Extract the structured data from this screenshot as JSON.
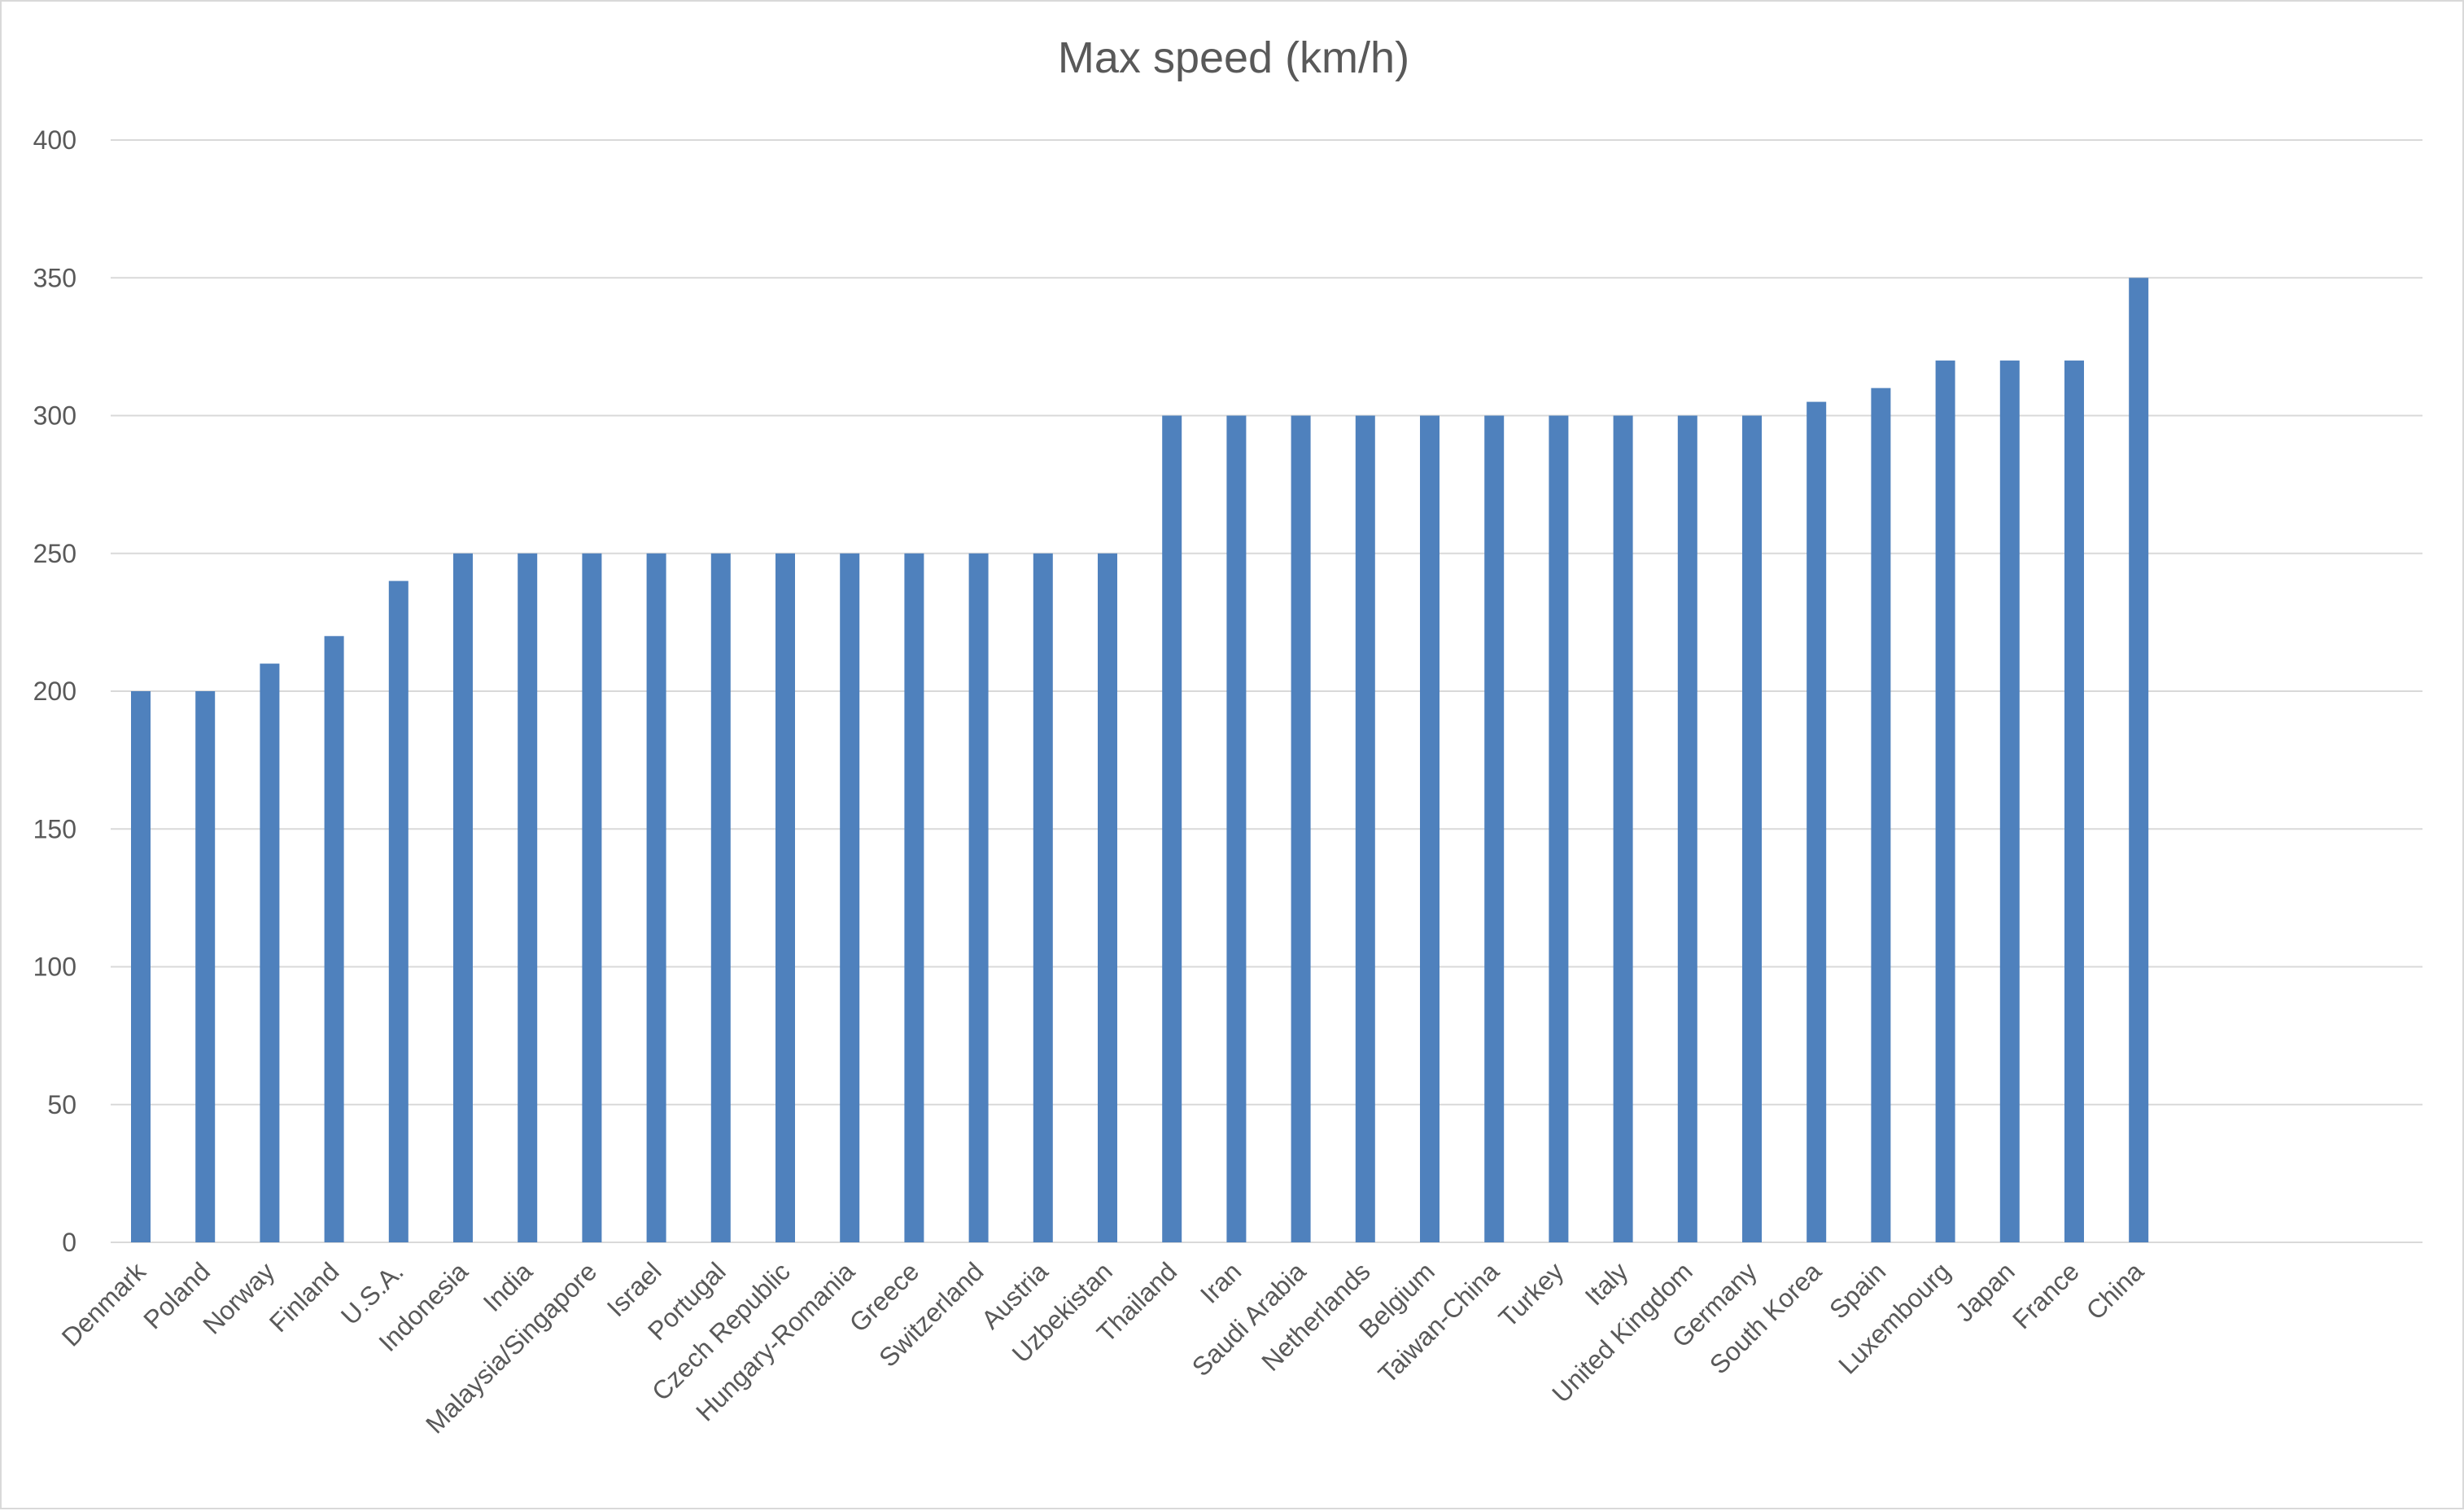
{
  "chart_data": {
    "type": "bar",
    "title": "Max speed (km/h)",
    "xlabel": "",
    "ylabel": "",
    "ylim": [
      0,
      400
    ],
    "yticks": [
      0,
      50,
      100,
      150,
      200,
      250,
      300,
      350,
      400
    ],
    "grid": true,
    "legend": "none",
    "bar_color": "#4f81bd",
    "categories": [
      "Denmark",
      "Poland",
      "Norway",
      "Finland",
      "U.S.A.",
      "Indonesia",
      "India",
      "Malaysia/Singapore",
      "Israel",
      "Portugal",
      "Czech Republic",
      "Hungary-Romania",
      "Greece",
      "Switzerland",
      "Austria",
      "Uzbekistan",
      "Thailand",
      "Iran",
      "Saudi Arabia",
      "Netherlands",
      "Belgium",
      "Taiwan-China",
      "Turkey",
      "Italy",
      "United Kingdom",
      "Germany",
      "South Korea",
      "Spain",
      "Luxembourg",
      "Japan",
      "France",
      "China"
    ],
    "values": [
      200,
      200,
      210,
      220,
      240,
      250,
      250,
      250,
      250,
      250,
      250,
      250,
      250,
      250,
      250,
      250,
      300,
      300,
      300,
      300,
      300,
      300,
      300,
      300,
      300,
      300,
      305,
      310,
      320,
      320,
      320,
      350
    ]
  }
}
